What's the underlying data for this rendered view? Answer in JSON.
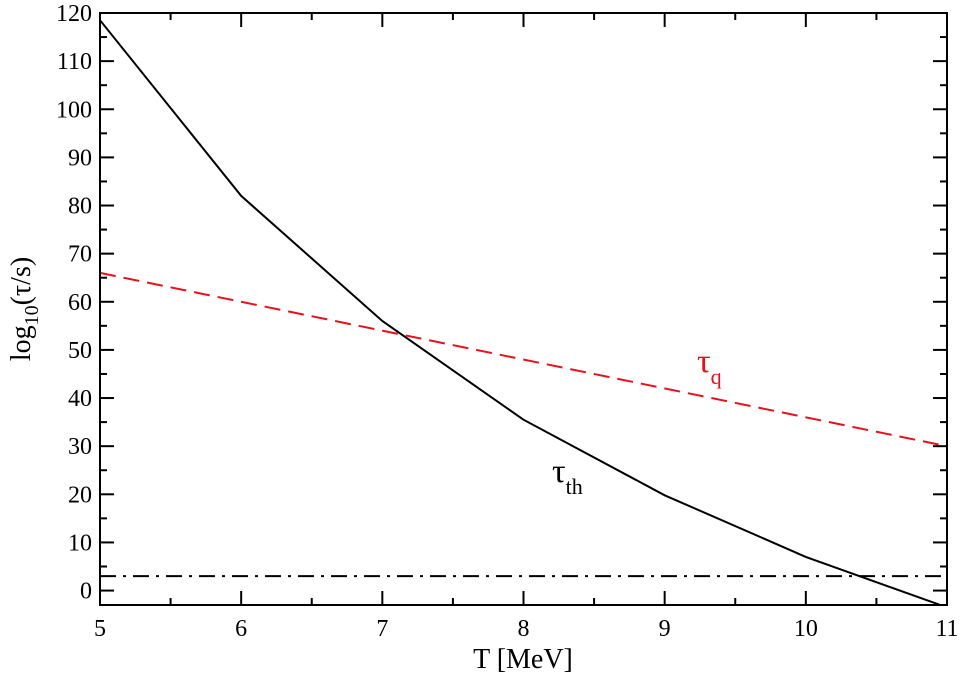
{
  "chart_data": {
    "type": "line",
    "xlabel": "T [MeV]",
    "ylabel_parts": {
      "main": "log",
      "sub": "10",
      "rest": "(τ/s)"
    },
    "xlim": [
      5,
      11
    ],
    "ylim": [
      -3,
      120
    ],
    "xticks": [
      5,
      6,
      7,
      8,
      9,
      10,
      11
    ],
    "yticks": [
      0,
      10,
      20,
      30,
      40,
      50,
      60,
      70,
      80,
      90,
      100,
      110,
      120
    ],
    "grid": false,
    "series": [
      {
        "id": "tau_th",
        "label_main": "τ",
        "label_sub": "th",
        "color": "#000000",
        "style": "solid",
        "x": [
          5,
          6,
          7,
          8,
          9,
          10,
          11
        ],
        "y": [
          118.5,
          82,
          56,
          35.5,
          19.8,
          7,
          -3.5
        ]
      },
      {
        "id": "tau_q",
        "label_main": "τ",
        "label_sub": "q",
        "color": "#e8101a",
        "style": "dashed",
        "x": [
          5,
          11
        ],
        "y": [
          66,
          30
        ]
      },
      {
        "id": "reference",
        "color": "#000000",
        "style": "dashdot",
        "x": [
          5,
          11
        ],
        "y": [
          3,
          3
        ]
      }
    ]
  }
}
